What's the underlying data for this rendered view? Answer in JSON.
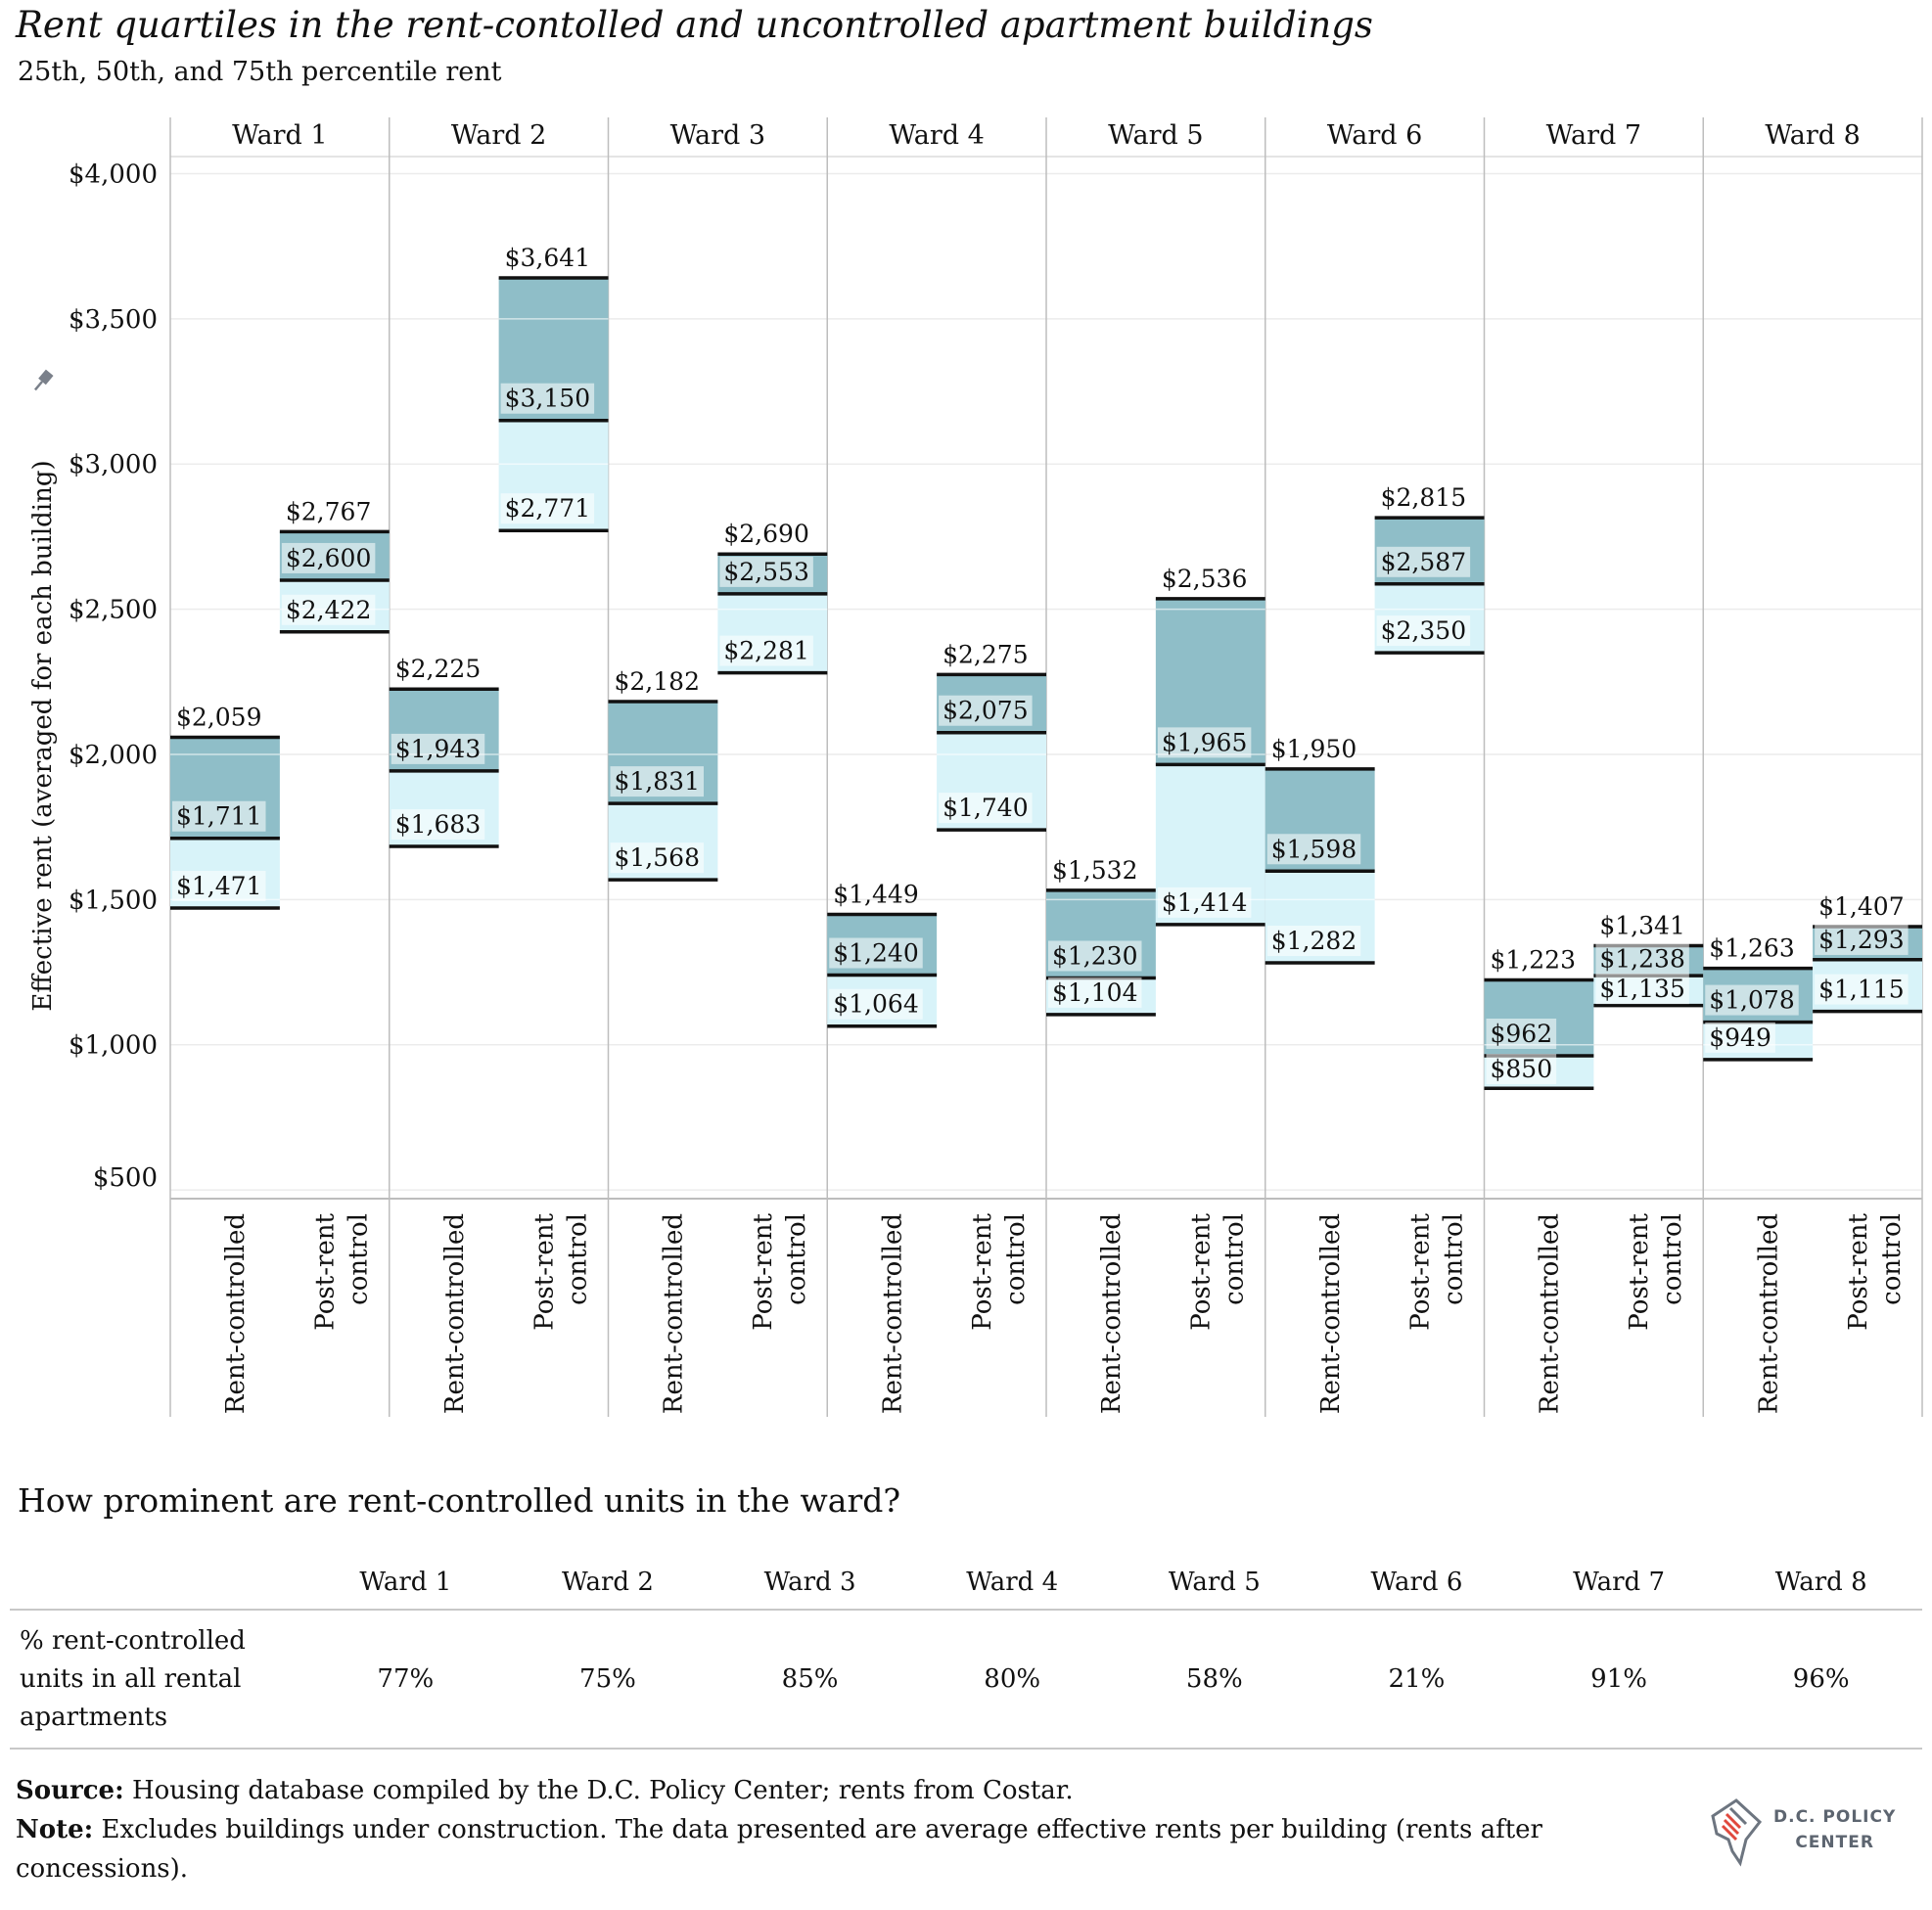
{
  "chart_data": {
    "type": "floating-box",
    "title": "Rent quartiles in the rent-contolled and uncontrolled apartment buildings",
    "subtitle": "25th, 50th, and 75th percentile rent",
    "ylabel": "Effective rent (averaged for each building)",
    "yticks": [
      "$4,000",
      "$3,500",
      "$3,000",
      "$2,500",
      "$2,000",
      "$1,500",
      "$1,000",
      "$500"
    ],
    "ylim": [
      500,
      4000
    ],
    "panels": [
      "Ward 1",
      "Ward 2",
      "Ward 3",
      "Ward 4",
      "Ward 5",
      "Ward 6",
      "Ward 7",
      "Ward 8"
    ],
    "categories": [
      "Rent-controlled",
      "Post-rent control"
    ],
    "colors": {
      "upper_box": "#8fbec8",
      "lower_box": "#d8f3f9",
      "divider": "#bdbdbd"
    },
    "series": [
      {
        "ward": "Ward 1",
        "category": "Rent-controlled",
        "p25": 1471,
        "p50": 1711,
        "p75": 2059,
        "labels": [
          "$1,471",
          "$1,711",
          "$2,059"
        ]
      },
      {
        "ward": "Ward 1",
        "category": "Post-rent control",
        "p25": 2422,
        "p50": 2600,
        "p75": 2767,
        "labels": [
          "$2,422",
          "$2,600",
          "$2,767"
        ]
      },
      {
        "ward": "Ward 2",
        "category": "Rent-controlled",
        "p25": 1683,
        "p50": 1943,
        "p75": 2225,
        "labels": [
          "$1,683",
          "$1,943",
          "$2,225"
        ]
      },
      {
        "ward": "Ward 2",
        "category": "Post-rent control",
        "p25": 2771,
        "p50": 3150,
        "p75": 3641,
        "labels": [
          "$2,771",
          "$3,150",
          "$3,641"
        ]
      },
      {
        "ward": "Ward 3",
        "category": "Rent-controlled",
        "p25": 1568,
        "p50": 1831,
        "p75": 2182,
        "labels": [
          "$1,568",
          "$1,831",
          "$2,182"
        ]
      },
      {
        "ward": "Ward 3",
        "category": "Post-rent control",
        "p25": 2281,
        "p50": 2553,
        "p75": 2690,
        "labels": [
          "$2,281",
          "$2,553",
          "$2,690"
        ]
      },
      {
        "ward": "Ward 4",
        "category": "Rent-controlled",
        "p25": 1064,
        "p50": 1240,
        "p75": 1449,
        "labels": [
          "$1,064",
          "$1,240",
          "$1,449"
        ]
      },
      {
        "ward": "Ward 4",
        "category": "Post-rent control",
        "p25": 1740,
        "p50": 2075,
        "p75": 2275,
        "labels": [
          "$1,740",
          "$2,075",
          "$2,275"
        ]
      },
      {
        "ward": "Ward 5",
        "category": "Rent-controlled",
        "p25": 1104,
        "p50": 1230,
        "p75": 1532,
        "labels": [
          "$1,104",
          "$1,230",
          "$1,532"
        ]
      },
      {
        "ward": "Ward 5",
        "category": "Post-rent control",
        "p25": 1414,
        "p50": 1965,
        "p75": 2536,
        "labels": [
          "$1,414",
          "$1,965",
          "$2,536"
        ]
      },
      {
        "ward": "Ward 6",
        "category": "Rent-controlled",
        "p25": 1282,
        "p50": 1598,
        "p75": 1950,
        "labels": [
          "$1,282",
          "$1,598",
          "$1,950"
        ]
      },
      {
        "ward": "Ward 6",
        "category": "Post-rent control",
        "p25": 2350,
        "p50": 2587,
        "p75": 2815,
        "labels": [
          "$2,350",
          "$2,587",
          "$2,815"
        ]
      },
      {
        "ward": "Ward 7",
        "category": "Rent-controlled",
        "p25": 850,
        "p50": 962,
        "p75": 1223,
        "labels": [
          "$850",
          "$962",
          "$1,223"
        ]
      },
      {
        "ward": "Ward 7",
        "category": "Post-rent control",
        "p25": 1135,
        "p50": 1238,
        "p75": 1341,
        "labels": [
          "$1,135",
          "$1,238",
          "$1,341"
        ]
      },
      {
        "ward": "Ward 8",
        "category": "Rent-controlled",
        "p25": 949,
        "p50": 1078,
        "p75": 1263,
        "labels": [
          "$949",
          "$1,078",
          "$1,263"
        ]
      },
      {
        "ward": "Ward 8",
        "category": "Post-rent control",
        "p25": 1115,
        "p50": 1293,
        "p75": 1407,
        "labels": [
          "$1,115",
          "$1,293",
          "$1,407"
        ]
      }
    ]
  },
  "table": {
    "heading": "How prominent are rent-controlled units in the ward?",
    "columns": [
      "Ward 1",
      "Ward 2",
      "Ward 3",
      "Ward 4",
      "Ward 5",
      "Ward 6",
      "Ward 7",
      "Ward 8"
    ],
    "row_label": "% rent-controlled units in all rental apartments",
    "values": [
      "77%",
      "75%",
      "85%",
      "80%",
      "58%",
      "21%",
      "91%",
      "96%"
    ]
  },
  "footnote": {
    "source_label": "Source:",
    "source_text": "Housing database compiled by the D.C. Policy Center; rents from Costar.",
    "note_label": "Note:",
    "note_text": "Excludes buildings under construction. The data presented are average effective rents per building (rents after concessions)."
  },
  "logo": {
    "line1": "D.C. POLICY",
    "line2": "CENTER",
    "icon": "dc-map-logo-icon"
  }
}
